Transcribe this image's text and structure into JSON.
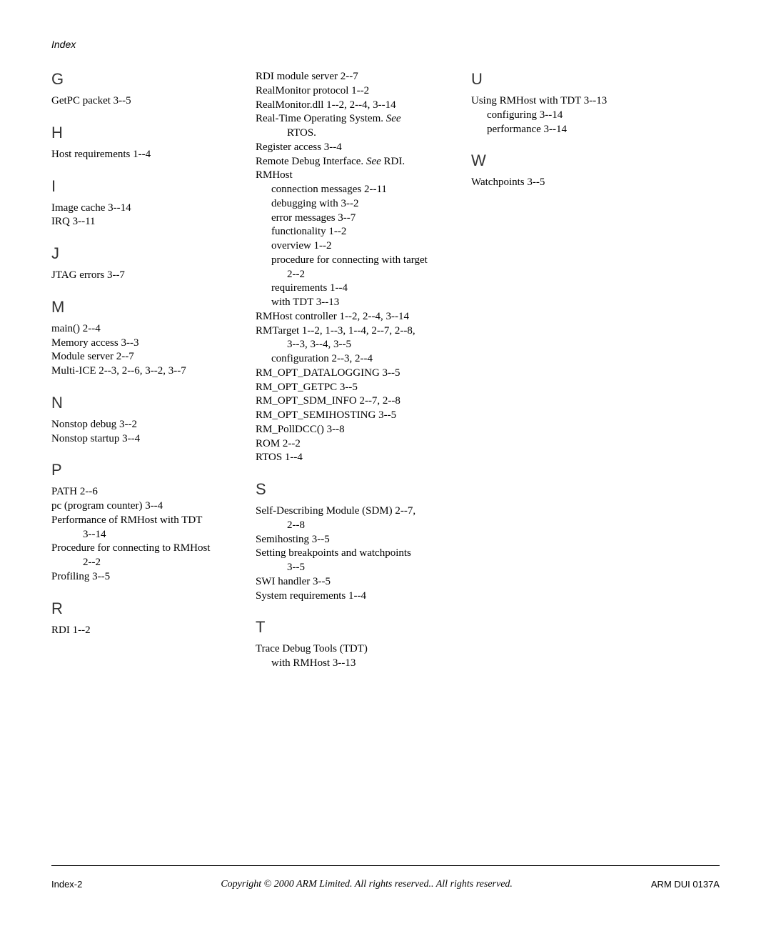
{
  "header": "Index",
  "footer": {
    "left": "Index-2",
    "center": "Copyright © 2000 ARM Limited. All rights reserved.. All rights reserved.",
    "right": "ARM DUI 0137A"
  },
  "col1": [
    {
      "type": "letter",
      "text": "G",
      "first": true
    },
    {
      "type": "entry",
      "text": "GetPC packet   3--5"
    },
    {
      "type": "letter",
      "text": "H"
    },
    {
      "type": "entry",
      "text": "Host requirements   1--4"
    },
    {
      "type": "letter",
      "text": "I"
    },
    {
      "type": "entry",
      "text": "Image cache   3--14"
    },
    {
      "type": "entry",
      "text": "IRQ   3--11"
    },
    {
      "type": "letter",
      "text": "J"
    },
    {
      "type": "entry",
      "text": "JTAG errors   3--7"
    },
    {
      "type": "letter",
      "text": "M"
    },
    {
      "type": "entry",
      "text": "main()   2--4"
    },
    {
      "type": "entry",
      "text": "Memory access   3--3"
    },
    {
      "type": "entry",
      "text": "Module server   2--7"
    },
    {
      "type": "entry",
      "text": "Multi-ICE   2--3, 2--6, 3--2, 3--7"
    },
    {
      "type": "letter",
      "text": "N"
    },
    {
      "type": "entry",
      "text": "Nonstop debug   3--2"
    },
    {
      "type": "entry",
      "text": "Nonstop startup   3--4"
    },
    {
      "type": "letter",
      "text": "P"
    },
    {
      "type": "entry",
      "text": "PATH   2--6"
    },
    {
      "type": "entry",
      "text": "pc (program counter)   3--4"
    },
    {
      "type": "entry",
      "text": "Performance of RMHost with TDT"
    },
    {
      "type": "sub2",
      "text": "3--14"
    },
    {
      "type": "entry",
      "text": "Procedure for connecting to RMHost"
    },
    {
      "type": "sub2",
      "text": "2--2"
    },
    {
      "type": "entry",
      "text": "Profiling   3--5"
    },
    {
      "type": "letter",
      "text": "R"
    },
    {
      "type": "entry",
      "text": "RDI   1--2"
    }
  ],
  "col2": [
    {
      "type": "entry",
      "text": "RDI module server   2--7"
    },
    {
      "type": "entry",
      "text": "RealMonitor protocol   1--2"
    },
    {
      "type": "entry",
      "text": "RealMonitor.dll   1--2, 2--4, 3--14"
    },
    {
      "type": "entry",
      "html": "Real-Time Operating System. <i>See</i>"
    },
    {
      "type": "sub2",
      "text": "RTOS."
    },
    {
      "type": "entry",
      "text": "Register access   3--4"
    },
    {
      "type": "entry",
      "html": "Remote Debug Interface. <i>See</i> RDI."
    },
    {
      "type": "entry",
      "text": "RMHost"
    },
    {
      "type": "sub",
      "text": "connection messages   2--11"
    },
    {
      "type": "sub",
      "text": "debugging with   3--2"
    },
    {
      "type": "sub",
      "text": "error messages   3--7"
    },
    {
      "type": "sub",
      "text": "functionality   1--2"
    },
    {
      "type": "sub",
      "text": "overview   1--2"
    },
    {
      "type": "sub",
      "text": "procedure for connecting with target"
    },
    {
      "type": "sub2",
      "text": "2--2"
    },
    {
      "type": "sub",
      "text": "requirements   1--4"
    },
    {
      "type": "sub",
      "text": "with TDT   3--13"
    },
    {
      "type": "entry",
      "text": "RMHost controller   1--2, 2--4, 3--14"
    },
    {
      "type": "entry",
      "text": "RMTarget   1--2, 1--3, 1--4, 2--7, 2--8,"
    },
    {
      "type": "sub2",
      "text": "3--3, 3--4, 3--5"
    },
    {
      "type": "sub",
      "text": "configuration   2--3, 2--4"
    },
    {
      "type": "entry",
      "text": "RM_OPT_DATALOGGING   3--5"
    },
    {
      "type": "entry",
      "text": "RM_OPT_GETPC   3--5"
    },
    {
      "type": "entry",
      "text": "RM_OPT_SDM_INFO   2--7, 2--8"
    },
    {
      "type": "entry",
      "text": "RM_OPT_SEMIHOSTING   3--5"
    },
    {
      "type": "entry",
      "text": "RM_PollDCC()   3--8"
    },
    {
      "type": "entry",
      "text": "ROM   2--2"
    },
    {
      "type": "entry",
      "text": "RTOS   1--4"
    },
    {
      "type": "letter",
      "text": "S"
    },
    {
      "type": "entry",
      "text": "Self-Describing Module (SDM)   2--7,"
    },
    {
      "type": "sub2",
      "text": "2--8"
    },
    {
      "type": "entry",
      "text": "Semihosting   3--5"
    },
    {
      "type": "entry",
      "text": "Setting breakpoints and watchpoints"
    },
    {
      "type": "sub2",
      "text": "3--5"
    },
    {
      "type": "entry",
      "text": "SWI handler   3--5"
    },
    {
      "type": "entry",
      "text": "System requirements   1--4"
    },
    {
      "type": "letter",
      "text": "T"
    },
    {
      "type": "entry",
      "text": "Trace Debug Tools (TDT)"
    },
    {
      "type": "sub",
      "text": "with RMHost   3--13"
    }
  ],
  "col3": [
    {
      "type": "letter",
      "text": "U",
      "first": true
    },
    {
      "type": "entry",
      "text": "Using RMHost with TDT   3--13"
    },
    {
      "type": "sub",
      "text": "configuring   3--14"
    },
    {
      "type": "sub",
      "text": "performance   3--14"
    },
    {
      "type": "letter",
      "text": "W"
    },
    {
      "type": "entry",
      "text": "Watchpoints   3--5"
    }
  ]
}
